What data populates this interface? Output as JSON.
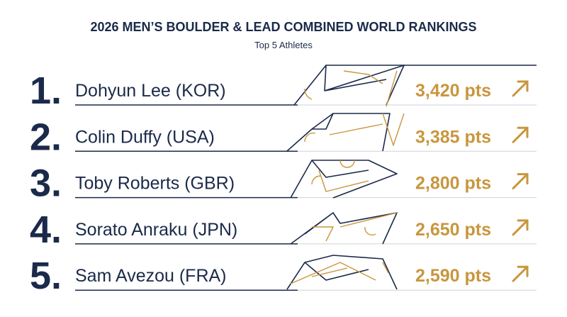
{
  "header": {
    "title": "2026 MEN’S BOULDER & LEAD COMBINED WORLD RANKINGS",
    "subtitle": "Top 5 Athletes"
  },
  "rows": [
    {
      "rank": "1.",
      "name": "Dohyun Lee (KOR)",
      "points": "3,420 pts"
    },
    {
      "rank": "2.",
      "name": "Colin Duffy (USA)",
      "points": "3,385 pts"
    },
    {
      "rank": "3.",
      "name": "Toby Roberts (GBR)",
      "points": "2,800 pts"
    },
    {
      "rank": "4.",
      "name": "Sorato Anraku (JPN)",
      "points": "2,650 pts"
    },
    {
      "rank": "5.",
      "name": "Sam Avezou (FRA)",
      "points": "2,590 pts"
    }
  ]
}
